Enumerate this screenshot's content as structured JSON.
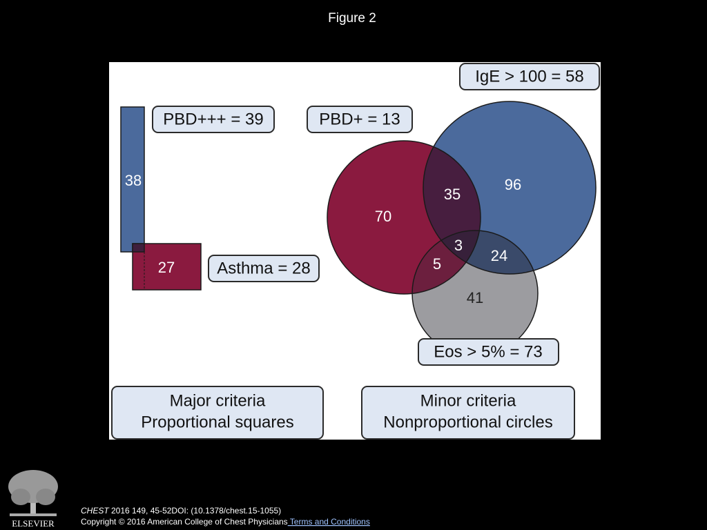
{
  "title": "Figure 2",
  "labels": {
    "ige": "IgE > 100 = 58",
    "pbd3": "PBD+++ = 39",
    "pbd1": "PBD+ = 13",
    "asthma": "Asthma = 28",
    "eos": "Eos > 5% = 73"
  },
  "regions": {
    "pbd3_only": "38",
    "asthma_only": "27",
    "pbd1_only": "70",
    "pbd1_ige": "35",
    "ige_only": "96",
    "all_three": "3",
    "pbd1_eos": "5",
    "ige_eos": "24",
    "eos_only": "41"
  },
  "legend": {
    "major": [
      "Major criteria",
      "Proportional squares"
    ],
    "minor": [
      "Minor criteria",
      "Nonproportional circles"
    ]
  },
  "footer": {
    "journal": "CHEST",
    "citation": " 2016 149, 45-52DOI: (10.1378/chest.15-1055)",
    "copyright": "Copyright © 2016 American College of Chest Physicians",
    "link": " Terms and Conditions",
    "publisher": "ELSEVIER"
  }
}
